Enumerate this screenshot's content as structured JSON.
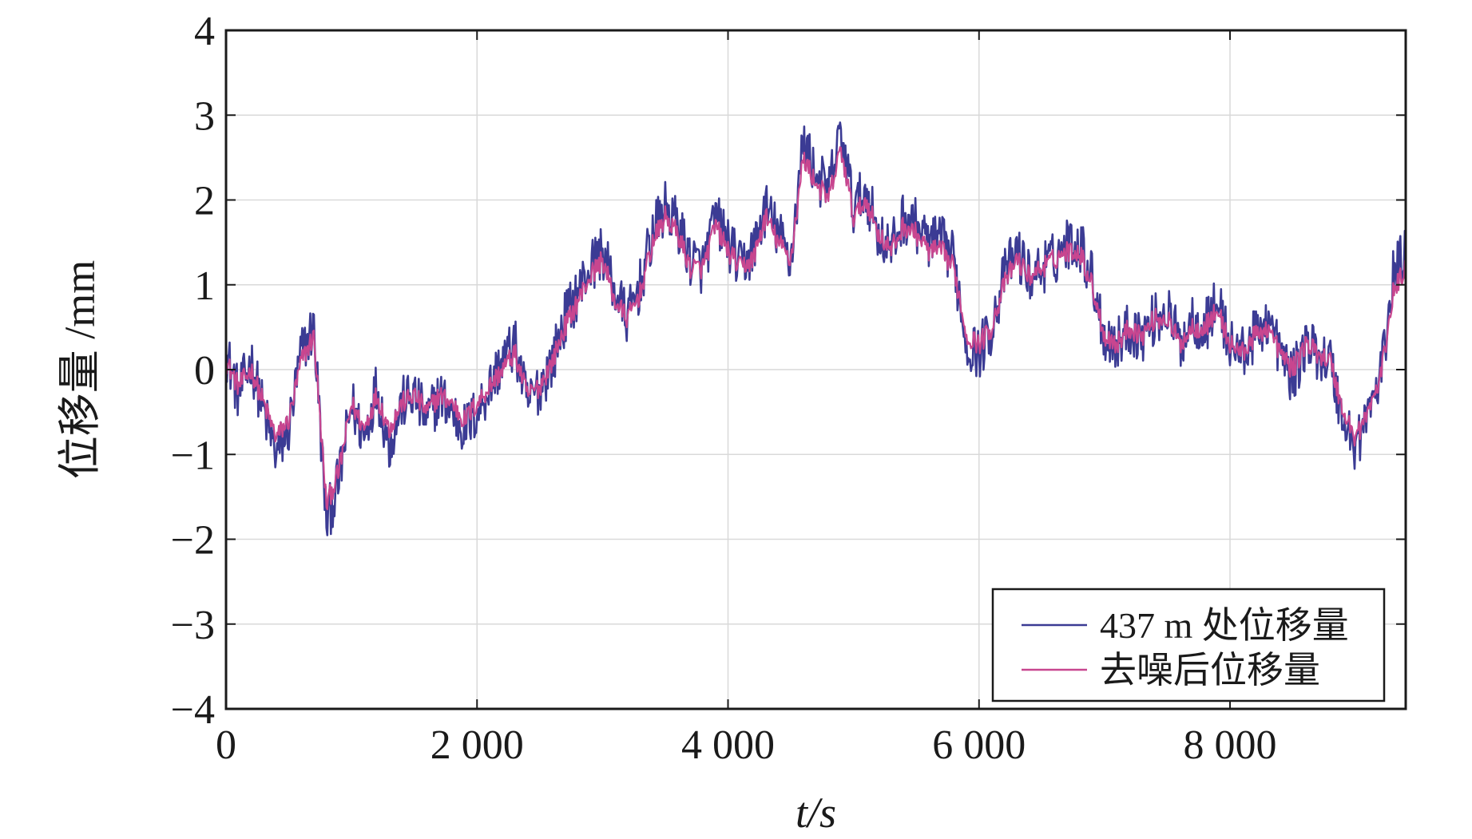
{
  "chart_data": {
    "type": "line",
    "xlabel": "t/s",
    "ylabel": "位移量 /mm",
    "xlim": [
      0,
      9400
    ],
    "ylim": [
      -4,
      4
    ],
    "x_ticks": [
      0,
      2000,
      4000,
      6000,
      8000
    ],
    "x_tick_labels": [
      "0",
      "2 000",
      "4 000",
      "6 000",
      "8 000"
    ],
    "y_ticks": [
      -4,
      -3,
      -2,
      -1,
      0,
      1,
      2,
      3,
      4
    ],
    "y_tick_labels": [
      "−4",
      "−3",
      "−2",
      "−1",
      "0",
      "1",
      "2",
      "3",
      "4"
    ],
    "grid": true,
    "legend_position": "bottom-right",
    "series": [
      {
        "name": "437 m 处位移量",
        "color": "#3b3b94",
        "x": [
          0,
          100,
          200,
          300,
          400,
          500,
          600,
          700,
          800,
          900,
          1000,
          1100,
          1200,
          1300,
          1400,
          1500,
          1600,
          1700,
          1800,
          1900,
          2000,
          2100,
          2200,
          2300,
          2400,
          2500,
          2600,
          2700,
          2800,
          2900,
          3000,
          3100,
          3200,
          3300,
          3400,
          3500,
          3600,
          3700,
          3800,
          3900,
          4000,
          4100,
          4200,
          4300,
          4400,
          4500,
          4600,
          4700,
          4800,
          4900,
          5000,
          5100,
          5200,
          5300,
          5400,
          5500,
          5600,
          5700,
          5800,
          5900,
          6000,
          6100,
          6200,
          6300,
          6400,
          6500,
          6600,
          6700,
          6800,
          6900,
          7000,
          7100,
          7200,
          7300,
          7400,
          7500,
          7600,
          7700,
          7800,
          7900,
          8000,
          8100,
          8200,
          8300,
          8400,
          8500,
          8600,
          8700,
          8800,
          8900,
          9000,
          9100,
          9200,
          9300,
          9400
        ],
        "y": [
          0.2,
          -0.3,
          0.1,
          -0.5,
          -1.0,
          -0.7,
          0.2,
          0.5,
          -1.8,
          -1.3,
          -0.4,
          -0.8,
          -0.2,
          -0.9,
          -0.4,
          -0.3,
          -0.6,
          -0.3,
          -0.5,
          -0.7,
          -0.5,
          -0.2,
          0.1,
          0.3,
          -0.4,
          -0.2,
          0.1,
          0.6,
          0.9,
          1.2,
          1.4,
          0.9,
          0.6,
          1.0,
          1.6,
          1.9,
          1.7,
          1.3,
          1.2,
          1.8,
          1.5,
          1.2,
          1.4,
          1.9,
          1.6,
          1.3,
          2.7,
          2.3,
          2.1,
          2.8,
          1.9,
          2.1,
          1.6,
          1.4,
          1.8,
          1.7,
          1.5,
          1.5,
          1.3,
          0.3,
          0.2,
          0.5,
          1.1,
          1.4,
          1.1,
          1.2,
          1.3,
          1.5,
          1.5,
          1.1,
          0.4,
          0.3,
          0.5,
          0.4,
          0.6,
          0.7,
          0.3,
          0.6,
          0.5,
          0.8,
          0.3,
          0.2,
          0.4,
          0.6,
          0.2,
          -0.1,
          0.3,
          0.2,
          0.1,
          -0.6,
          -0.9,
          -0.5,
          -0.1,
          1.1,
          1.4
        ]
      },
      {
        "name": "去噪后位移量",
        "color": "#c8468f",
        "x": [
          0,
          100,
          200,
          300,
          400,
          500,
          600,
          700,
          800,
          900,
          1000,
          1100,
          1200,
          1300,
          1400,
          1500,
          1600,
          1700,
          1800,
          1900,
          2000,
          2100,
          2200,
          2300,
          2400,
          2500,
          2600,
          2700,
          2800,
          2900,
          3000,
          3100,
          3200,
          3300,
          3400,
          3500,
          3600,
          3700,
          3800,
          3900,
          4000,
          4100,
          4200,
          4300,
          4400,
          4500,
          4600,
          4700,
          4800,
          4900,
          5000,
          5100,
          5200,
          5300,
          5400,
          5500,
          5600,
          5700,
          5800,
          5900,
          6000,
          6100,
          6200,
          6300,
          6400,
          6500,
          6600,
          6700,
          6800,
          6900,
          7000,
          7100,
          7200,
          7300,
          7400,
          7500,
          7600,
          7700,
          7800,
          7900,
          8000,
          8100,
          8200,
          8300,
          8400,
          8500,
          8600,
          8700,
          8800,
          8900,
          9000,
          9100,
          9200,
          9300,
          9400
        ],
        "y": [
          0.1,
          -0.2,
          0.0,
          -0.4,
          -0.8,
          -0.6,
          0.1,
          0.4,
          -1.6,
          -1.2,
          -0.4,
          -0.7,
          -0.3,
          -0.7,
          -0.4,
          -0.3,
          -0.5,
          -0.3,
          -0.4,
          -0.6,
          -0.4,
          -0.2,
          0.0,
          0.2,
          -0.3,
          -0.2,
          0.1,
          0.5,
          0.8,
          1.1,
          1.3,
          0.8,
          0.6,
          0.9,
          1.5,
          1.8,
          1.6,
          1.2,
          1.2,
          1.7,
          1.4,
          1.2,
          1.3,
          1.8,
          1.5,
          1.3,
          2.5,
          2.2,
          2.0,
          2.6,
          1.8,
          2.0,
          1.6,
          1.4,
          1.7,
          1.6,
          1.4,
          1.4,
          1.2,
          0.4,
          0.3,
          0.5,
          1.0,
          1.3,
          1.1,
          1.2,
          1.3,
          1.4,
          1.4,
          1.0,
          0.4,
          0.3,
          0.5,
          0.4,
          0.6,
          0.6,
          0.3,
          0.5,
          0.5,
          0.7,
          0.3,
          0.2,
          0.4,
          0.5,
          0.2,
          0.0,
          0.3,
          0.2,
          0.1,
          -0.5,
          -0.8,
          -0.5,
          -0.1,
          0.9,
          1.2
        ]
      }
    ]
  }
}
